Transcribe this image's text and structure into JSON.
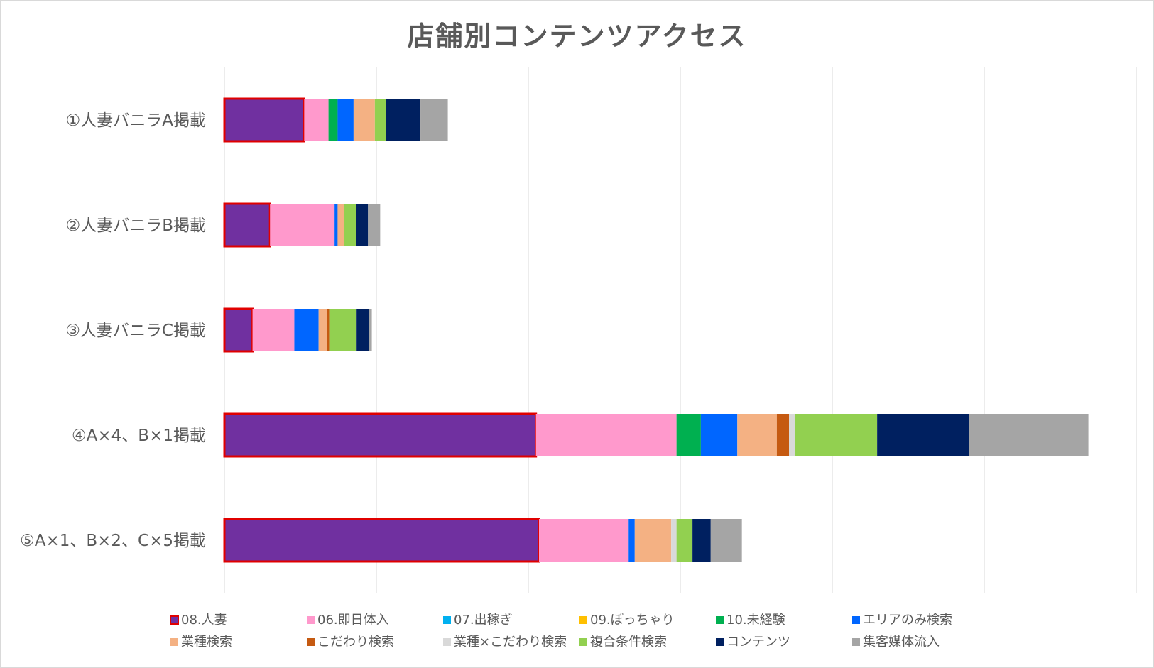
{
  "chart_data": {
    "type": "bar",
    "orientation": "horizontal",
    "stacked": true,
    "title": "店舗別コンテンツアクセス",
    "categories": [
      "①人妻バニラA掲載",
      "②人妻バニラB掲載",
      "③人妻バニラC掲載",
      "④A×4、B×1掲載",
      "⑤A×1、B×2、C×5掲載"
    ],
    "xlim": [
      0,
      1200
    ],
    "grid": true,
    "legend_position": "bottom",
    "series": [
      {
        "name": "08.人妻",
        "color": "#7030a0",
        "values": [
          105,
          60,
          37,
          410,
          414
        ]
      },
      {
        "name": "06.即日体入",
        "color": "#ff99cc",
        "values": [
          32,
          85,
          55,
          185,
          118
        ]
      },
      {
        "name": "07.出稼ぎ",
        "color": "#00b0f0",
        "values": [
          0,
          0,
          0,
          0,
          0
        ]
      },
      {
        "name": "09.ぽっちゃり",
        "color": "#ffc000",
        "values": [
          0,
          0,
          0,
          0,
          0
        ]
      },
      {
        "name": "10.未経験",
        "color": "#00b050",
        "values": [
          12,
          0,
          0,
          32,
          0
        ]
      },
      {
        "name": "エリアのみ検索",
        "color": "#0066ff",
        "values": [
          21,
          4,
          32,
          48,
          8
        ]
      },
      {
        "name": "業種検索",
        "color": "#f4b183",
        "values": [
          28,
          8,
          11,
          52,
          48
        ]
      },
      {
        "name": "こだわり検索",
        "color": "#c55a11",
        "values": [
          0,
          0,
          3,
          16,
          0
        ]
      },
      {
        "name": "業種×こだわり検索",
        "color": "#d9d9d9",
        "values": [
          0,
          0,
          0,
          8,
          7
        ]
      },
      {
        "name": "複合条件検索",
        "color": "#92d050",
        "values": [
          15,
          16,
          36,
          108,
          21
        ]
      },
      {
        "name": "コンテンツ",
        "color": "#002060",
        "values": [
          45,
          16,
          16,
          121,
          24
        ]
      },
      {
        "name": "集客媒体流入",
        "color": "#a5a5a5",
        "values": [
          36,
          16,
          4,
          157,
          41
        ]
      }
    ]
  }
}
